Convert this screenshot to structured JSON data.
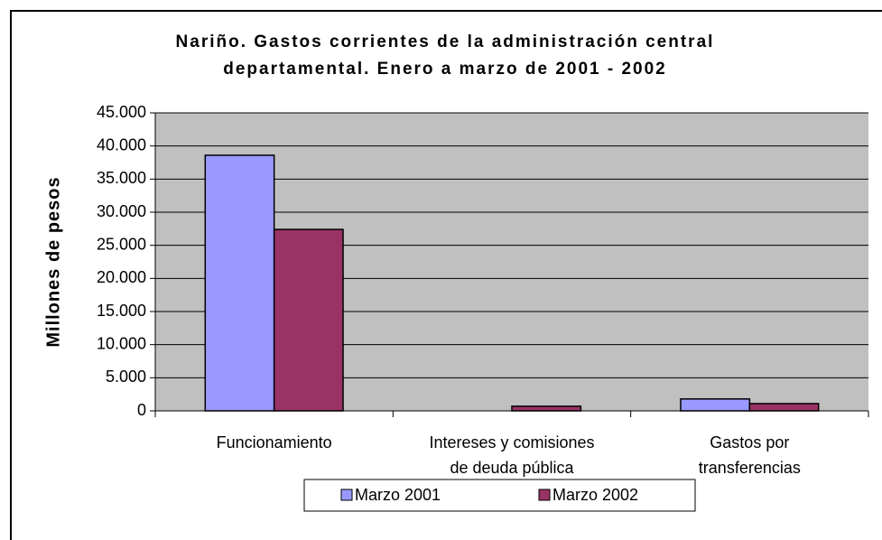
{
  "chart_data": {
    "type": "bar",
    "title": "Nariño. Gastos corrientes de la administración central departamental. Enero a marzo de 2001 - 2002",
    "y_label": "Millones de pesos",
    "categories": [
      "Funcionamiento",
      "Intereses y comisiones de deuda pública",
      "Gastos por transferencias"
    ],
    "series": [
      {
        "name": "Marzo 2001",
        "color": "#9999ff",
        "values": [
          38600,
          0,
          1800
        ]
      },
      {
        "name": "Marzo 2002",
        "color": "#993366",
        "values": [
          27400,
          700,
          1100
        ]
      }
    ],
    "ylim": [
      0,
      45000
    ],
    "yticks": [
      0,
      {
        "value": 5000,
        "label": "5.000"
      },
      {
        "value": 10000,
        "label": "10.000"
      },
      {
        "value": 15000,
        "label": "15.000"
      },
      {
        "value": 20000,
        "label": "20.000"
      },
      {
        "value": 25000,
        "label": "25.000"
      },
      {
        "value": 30000,
        "label": "30.000"
      },
      {
        "value": 35000,
        "label": "35.000"
      },
      {
        "value": 40000,
        "label": "40.000"
      },
      {
        "value": 45000,
        "label": "45.000"
      }
    ],
    "grid": true,
    "legend": "bottom"
  }
}
